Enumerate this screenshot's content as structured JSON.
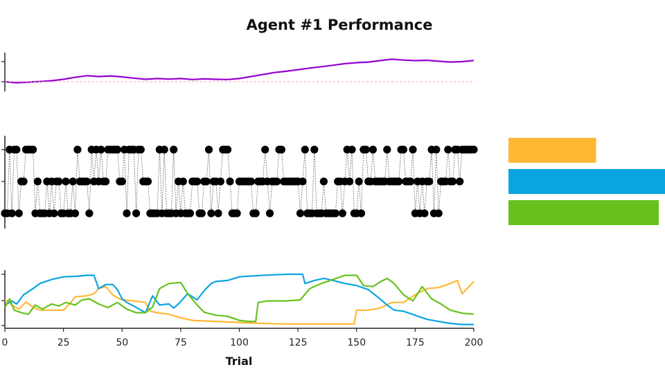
{
  "chart_data": {
    "title": "Agent #1 Performance",
    "xlabel": "Trial",
    "xlim": [
      0,
      200
    ],
    "x_ticks": [
      0,
      25,
      50,
      75,
      100,
      125,
      150,
      175,
      200
    ],
    "colors": {
      "performance": "#9400d3",
      "reference": "#ff9aa8",
      "choice": "#000000",
      "option_a": "#ffb733",
      "option_b": "#0aa5e0",
      "option_c": "#66c11c"
    },
    "panels": [
      {
        "type": "line",
        "series": [
          {
            "color_key": "performance",
            "points": [
              [
                0,
                0.0
              ],
              [
                5,
                -0.05
              ],
              [
                10,
                -0.02
              ],
              [
                15,
                0.01
              ],
              [
                20,
                0.05
              ],
              [
                25,
                0.12
              ],
              [
                30,
                0.22
              ],
              [
                35,
                0.3
              ],
              [
                40,
                0.26
              ],
              [
                45,
                0.29
              ],
              [
                50,
                0.24
              ],
              [
                55,
                0.18
              ],
              [
                60,
                0.12
              ],
              [
                65,
                0.16
              ],
              [
                70,
                0.13
              ],
              [
                75,
                0.16
              ],
              [
                80,
                0.11
              ],
              [
                85,
                0.14
              ],
              [
                90,
                0.12
              ],
              [
                95,
                0.11
              ],
              [
                100,
                0.16
              ],
              [
                105,
                0.26
              ],
              [
                110,
                0.36
              ],
              [
                115,
                0.46
              ],
              [
                120,
                0.52
              ],
              [
                125,
                0.6
              ],
              [
                130,
                0.68
              ],
              [
                135,
                0.75
              ],
              [
                140,
                0.82
              ],
              [
                145,
                0.9
              ],
              [
                150,
                0.95
              ],
              [
                155,
                0.98
              ],
              [
                160,
                1.05
              ],
              [
                165,
                1.12
              ],
              [
                170,
                1.08
              ],
              [
                175,
                1.05
              ],
              [
                180,
                1.07
              ],
              [
                185,
                1.02
              ],
              [
                190,
                0.98
              ],
              [
                195,
                1.0
              ],
              [
                200,
                1.06
              ]
            ]
          },
          {
            "color_key": "reference",
            "dashed": true,
            "points": [
              [
                0,
                0
              ],
              [
                200,
                0
              ]
            ]
          }
        ],
        "ylim": [
          -0.3,
          1.4
        ]
      },
      {
        "type": "scatter",
        "levels": [
          0,
          1,
          2
        ],
        "choices": [
          0,
          0,
          2,
          0,
          2,
          2,
          0,
          1,
          1,
          2,
          2,
          2,
          2,
          0,
          1,
          0,
          0,
          0,
          1,
          0,
          1,
          0,
          1,
          1,
          0,
          0,
          1,
          0,
          0,
          1,
          0,
          2,
          1,
          1,
          1,
          1,
          0,
          2,
          1,
          2,
          1,
          2,
          1,
          1,
          2,
          2,
          2,
          2,
          2,
          1,
          1,
          2,
          0,
          2,
          2,
          2,
          0,
          2,
          2,
          1,
          1,
          1,
          0,
          0,
          0,
          0,
          2,
          0,
          2,
          0,
          0,
          0,
          2,
          0,
          1,
          0,
          1,
          0,
          0,
          0,
          1,
          1,
          1,
          0,
          0,
          1,
          1,
          2,
          0,
          1,
          1,
          0,
          1,
          2,
          2,
          2,
          1,
          0,
          0,
          0,
          1,
          1,
          1,
          1,
          1,
          1,
          0,
          0,
          1,
          1,
          1,
          2,
          1,
          0,
          1,
          1,
          1,
          2,
          2,
          1,
          1,
          1,
          1,
          1,
          1,
          1,
          0,
          1,
          2,
          0,
          0,
          0,
          2,
          0,
          0,
          0,
          1,
          0,
          0,
          0,
          0,
          0,
          1,
          1,
          0,
          1,
          2,
          1,
          2,
          0,
          0,
          1,
          0,
          2,
          2,
          1,
          1,
          2,
          1,
          1,
          1,
          1,
          1,
          2,
          1,
          1,
          1,
          1,
          1,
          2,
          2,
          1,
          1,
          1,
          2,
          0,
          1,
          0,
          1,
          0,
          1,
          1,
          2,
          0,
          2,
          0,
          1,
          1,
          1,
          2,
          1,
          1,
          2,
          2,
          1,
          2,
          2,
          2,
          2,
          2,
          2
        ]
      },
      {
        "type": "line",
        "ylim": [
          0,
          1
        ],
        "series": [
          {
            "color_key": "option_a",
            "points": [
              [
                0,
                0.5
              ],
              [
                3,
                0.4
              ],
              [
                6,
                0.32
              ],
              [
                9,
                0.46
              ],
              [
                12,
                0.36
              ],
              [
                15,
                0.3
              ],
              [
                20,
                0.3
              ],
              [
                25,
                0.3
              ],
              [
                28,
                0.44
              ],
              [
                30,
                0.56
              ],
              [
                35,
                0.58
              ],
              [
                38,
                0.62
              ],
              [
                40,
                0.72
              ],
              [
                43,
                0.76
              ],
              [
                46,
                0.6
              ],
              [
                48,
                0.54
              ],
              [
                50,
                0.5
              ],
              [
                55,
                0.48
              ],
              [
                60,
                0.45
              ],
              [
                62,
                0.28
              ],
              [
                65,
                0.25
              ],
              [
                70,
                0.22
              ],
              [
                75,
                0.15
              ],
              [
                80,
                0.1
              ],
              [
                90,
                0.08
              ],
              [
                100,
                0.06
              ],
              [
                110,
                0.04
              ],
              [
                120,
                0.03
              ],
              [
                130,
                0.03
              ],
              [
                140,
                0.03
              ],
              [
                149,
                0.03
              ],
              [
                150,
                0.3
              ],
              [
                155,
                0.3
              ],
              [
                160,
                0.34
              ],
              [
                165,
                0.45
              ],
              [
                170,
                0.45
              ],
              [
                175,
                0.6
              ],
              [
                180,
                0.72
              ],
              [
                185,
                0.74
              ],
              [
                190,
                0.82
              ],
              [
                193,
                0.88
              ],
              [
                195,
                0.62
              ],
              [
                200,
                0.86
              ]
            ]
          },
          {
            "color_key": "option_b",
            "points": [
              [
                0,
                0.4
              ],
              [
                3,
                0.48
              ],
              [
                5,
                0.42
              ],
              [
                8,
                0.6
              ],
              [
                12,
                0.72
              ],
              [
                15,
                0.82
              ],
              [
                20,
                0.9
              ],
              [
                25,
                0.95
              ],
              [
                30,
                0.96
              ],
              [
                35,
                0.98
              ],
              [
                38,
                0.98
              ],
              [
                40,
                0.72
              ],
              [
                43,
                0.8
              ],
              [
                46,
                0.8
              ],
              [
                48,
                0.7
              ],
              [
                50,
                0.52
              ],
              [
                52,
                0.45
              ],
              [
                55,
                0.38
              ],
              [
                60,
                0.25
              ],
              [
                63,
                0.58
              ],
              [
                66,
                0.4
              ],
              [
                70,
                0.42
              ],
              [
                72,
                0.34
              ],
              [
                74,
                0.42
              ],
              [
                78,
                0.62
              ],
              [
                82,
                0.5
              ],
              [
                85,
                0.68
              ],
              [
                88,
                0.82
              ],
              [
                90,
                0.86
              ],
              [
                95,
                0.88
              ],
              [
                100,
                0.95
              ],
              [
                110,
                0.98
              ],
              [
                120,
                1.0
              ],
              [
                127,
                1.0
              ],
              [
                128,
                0.82
              ],
              [
                132,
                0.88
              ],
              [
                136,
                0.92
              ],
              [
                140,
                0.88
              ],
              [
                145,
                0.82
              ],
              [
                150,
                0.78
              ],
              [
                155,
                0.7
              ],
              [
                160,
                0.52
              ],
              [
                163,
                0.4
              ],
              [
                166,
                0.3
              ],
              [
                170,
                0.28
              ],
              [
                175,
                0.2
              ],
              [
                180,
                0.12
              ],
              [
                185,
                0.08
              ],
              [
                190,
                0.04
              ],
              [
                195,
                0.02
              ],
              [
                200,
                0.02
              ]
            ]
          },
          {
            "color_key": "option_c",
            "points": [
              [
                0,
                0.35
              ],
              [
                2,
                0.52
              ],
              [
                4,
                0.3
              ],
              [
                7,
                0.25
              ],
              [
                10,
                0.22
              ],
              [
                13,
                0.4
              ],
              [
                16,
                0.32
              ],
              [
                20,
                0.42
              ],
              [
                23,
                0.38
              ],
              [
                26,
                0.45
              ],
              [
                30,
                0.4
              ],
              [
                33,
                0.5
              ],
              [
                36,
                0.52
              ],
              [
                40,
                0.42
              ],
              [
                44,
                0.35
              ],
              [
                48,
                0.45
              ],
              [
                52,
                0.32
              ],
              [
                56,
                0.25
              ],
              [
                60,
                0.25
              ],
              [
                63,
                0.36
              ],
              [
                66,
                0.72
              ],
              [
                70,
                0.82
              ],
              [
                75,
                0.84
              ],
              [
                78,
                0.62
              ],
              [
                82,
                0.4
              ],
              [
                85,
                0.26
              ],
              [
                90,
                0.2
              ],
              [
                95,
                0.18
              ],
              [
                100,
                0.1
              ],
              [
                104,
                0.08
              ],
              [
                107,
                0.08
              ],
              [
                108,
                0.45
              ],
              [
                112,
                0.48
              ],
              [
                120,
                0.48
              ],
              [
                126,
                0.5
              ],
              [
                130,
                0.72
              ],
              [
                135,
                0.82
              ],
              [
                140,
                0.9
              ],
              [
                145,
                0.98
              ],
              [
                150,
                0.98
              ],
              [
                153,
                0.78
              ],
              [
                157,
                0.76
              ],
              [
                160,
                0.85
              ],
              [
                163,
                0.92
              ],
              [
                166,
                0.82
              ],
              [
                170,
                0.6
              ],
              [
                174,
                0.48
              ],
              [
                178,
                0.76
              ],
              [
                182,
                0.52
              ],
              [
                186,
                0.42
              ],
              [
                190,
                0.3
              ],
              [
                195,
                0.24
              ],
              [
                200,
                0.22
              ]
            ]
          }
        ]
      }
    ],
    "summary_bars": [
      {
        "color_key": "option_a",
        "value": 0.56
      },
      {
        "color_key": "option_b",
        "value": 1.0
      },
      {
        "color_key": "option_c",
        "value": 0.96
      }
    ]
  }
}
